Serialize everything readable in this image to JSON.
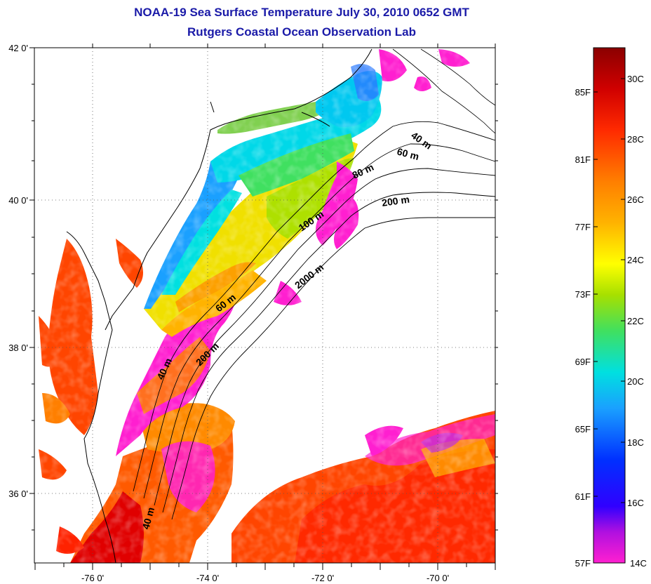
{
  "header": {
    "title": "NOAA-19 Sea Surface Temperature July 30, 2010 0652 GMT",
    "subtitle": "Rutgers Coastal Ocean Observation Lab"
  },
  "axes": {
    "lat_ticks": [
      "42 0'",
      "40 0'",
      "38 0'",
      "36 0'"
    ],
    "lon_ticks": [
      "-76 0'",
      "-74 0'",
      "-72 0'",
      "-70 0'"
    ]
  },
  "isobath_labels": [
    "40 m",
    "60 m",
    "80 m",
    "200 m",
    "100 m",
    "2000 m",
    "60 m",
    "200 m",
    "40 m",
    "40 m"
  ],
  "colorbar": {
    "fahrenheit": [
      "85F",
      "81F",
      "77F",
      "73F",
      "69F",
      "65F",
      "61F",
      "57F"
    ],
    "celsius": [
      "30C",
      "28C",
      "26C",
      "24C",
      "22C",
      "20C",
      "18C",
      "16C",
      "14C"
    ],
    "colors": [
      "#8b0000",
      "#d00000",
      "#ff2a00",
      "#ff7f00",
      "#ffb300",
      "#ffff00",
      "#a6e000",
      "#40e060",
      "#00e0e0",
      "#1aa0ff",
      "#0030ff",
      "#0000ff",
      "#7a00d0",
      "#ff1fd0"
    ]
  },
  "palette": {
    "warm_water": "#ff4500",
    "hot_water": "#e00000",
    "shelf_yellow": "#f0e000",
    "cool_cyan": "#00d8e8",
    "cold_pink": "#ff1fd0",
    "land_cloud": "#ffffff"
  }
}
